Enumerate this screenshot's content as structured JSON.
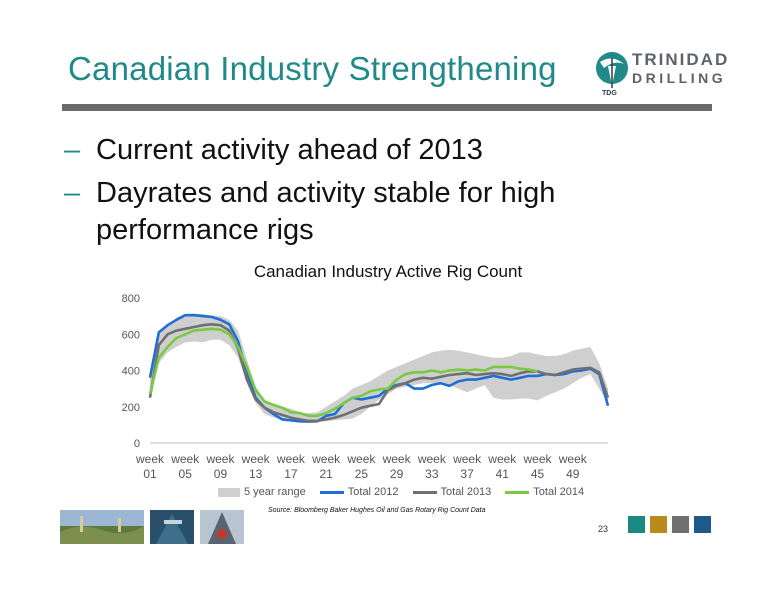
{
  "slide": {
    "title": "Canadian Industry Strengthening",
    "bullets": [
      "Current activity ahead of 2013",
      "Dayrates and activity stable for high performance rigs"
    ],
    "bullet_marker": "–",
    "source": "Source: Bloomberg Baker Hughes Oil and Gas Rotary Rig Count Data",
    "page_number": "23",
    "logo": {
      "word1": "TRINIDAD",
      "word2": "DRILLING",
      "tag": "TDG"
    },
    "colors": {
      "title": "#1f8a89",
      "rule": "#6b6b6b",
      "squares": [
        "#1a8a80",
        "#b98b1b",
        "#707070",
        "#1d5a8a"
      ]
    }
  },
  "chart_data": {
    "type": "line",
    "title": "Canadian Industry Active Rig Count",
    "ylim": [
      0,
      800
    ],
    "yticks": [
      0,
      200,
      400,
      600,
      800
    ],
    "xlim": [
      1,
      53
    ],
    "xticks": [
      1,
      5,
      9,
      13,
      17,
      21,
      25,
      29,
      33,
      37,
      41,
      45,
      49
    ],
    "xtick_labels": [
      [
        "week",
        "01"
      ],
      [
        "week",
        "05"
      ],
      [
        "week",
        "09"
      ],
      [
        "week",
        "13"
      ],
      [
        "week",
        "17"
      ],
      [
        "week",
        "21"
      ],
      [
        "week",
        "25"
      ],
      [
        "week",
        "29"
      ],
      [
        "week",
        "33"
      ],
      [
        "week",
        "37"
      ],
      [
        "week",
        "41"
      ],
      [
        "week",
        "45"
      ],
      [
        "week",
        "49"
      ]
    ],
    "grid": false,
    "legend_position": "bottom",
    "band": {
      "name": "5 year range",
      "color": "#cfcfcf",
      "x": [
        1,
        2,
        3,
        4,
        5,
        6,
        7,
        8,
        9,
        10,
        11,
        12,
        13,
        14,
        15,
        16,
        17,
        18,
        19,
        20,
        21,
        22,
        23,
        24,
        25,
        26,
        27,
        28,
        29,
        30,
        31,
        32,
        33,
        34,
        35,
        36,
        37,
        38,
        39,
        40,
        41,
        42,
        43,
        44,
        45,
        46,
        47,
        48,
        49,
        50,
        51,
        52,
        53
      ],
      "low": [
        260,
        440,
        500,
        530,
        555,
        560,
        555,
        570,
        570,
        540,
        470,
        330,
        220,
        160,
        140,
        130,
        125,
        120,
        118,
        118,
        120,
        125,
        130,
        135,
        160,
        200,
        240,
        270,
        300,
        310,
        320,
        330,
        330,
        330,
        320,
        300,
        280,
        300,
        320,
        250,
        240,
        240,
        245,
        245,
        235,
        260,
        280,
        300,
        330,
        360,
        380,
        300,
        220
      ],
      "high": [
        400,
        600,
        650,
        690,
        710,
        715,
        710,
        705,
        700,
        680,
        620,
        460,
        310,
        240,
        210,
        200,
        190,
        170,
        165,
        170,
        200,
        230,
        260,
        300,
        320,
        340,
        370,
        400,
        420,
        440,
        460,
        480,
        500,
        510,
        515,
        510,
        500,
        490,
        480,
        470,
        470,
        480,
        500,
        500,
        490,
        480,
        480,
        490,
        510,
        520,
        530,
        440,
        300
      ]
    },
    "series": [
      {
        "name": "Total 2012",
        "color": "#1f6fd6",
        "x": [
          1,
          2,
          3,
          4,
          5,
          6,
          7,
          8,
          9,
          10,
          11,
          12,
          13,
          14,
          15,
          16,
          17,
          18,
          19,
          20,
          21,
          22,
          23,
          24,
          25,
          26,
          27,
          28,
          29,
          30,
          31,
          32,
          33,
          34,
          35,
          36,
          37,
          38,
          39,
          40,
          41,
          42,
          43,
          44,
          45,
          46,
          47,
          48,
          49,
          50,
          51,
          52,
          53
        ],
        "values": [
          360,
          610,
          650,
          680,
          705,
          705,
          700,
          695,
          680,
          655,
          560,
          380,
          250,
          195,
          160,
          130,
          125,
          120,
          118,
          120,
          150,
          160,
          220,
          250,
          240,
          250,
          260,
          300,
          320,
          330,
          300,
          300,
          320,
          330,
          315,
          340,
          350,
          350,
          360,
          370,
          360,
          350,
          360,
          370,
          370,
          380,
          375,
          380,
          395,
          400,
          410,
          380,
          205
        ]
      },
      {
        "name": "Total 2013",
        "color": "#707070",
        "x": [
          1,
          2,
          3,
          4,
          5,
          6,
          7,
          8,
          9,
          10,
          11,
          12,
          13,
          14,
          15,
          16,
          17,
          18,
          19,
          20,
          21,
          22,
          23,
          24,
          25,
          26,
          27,
          28,
          29,
          30,
          31,
          32,
          33,
          34,
          35,
          36,
          37,
          38,
          39,
          40,
          41,
          42,
          43,
          44,
          45,
          46,
          47,
          48,
          49,
          50,
          51,
          52,
          53
        ],
        "values": [
          250,
          540,
          600,
          620,
          630,
          640,
          650,
          655,
          650,
          620,
          520,
          350,
          240,
          195,
          170,
          155,
          140,
          130,
          122,
          122,
          130,
          140,
          155,
          175,
          195,
          205,
          215,
          290,
          315,
          330,
          350,
          360,
          355,
          365,
          375,
          380,
          385,
          375,
          380,
          385,
          380,
          370,
          385,
          395,
          395,
          380,
          375,
          390,
          405,
          410,
          415,
          390,
          250
        ]
      },
      {
        "name": "Total 2014",
        "color": "#7ac943",
        "x": [
          1,
          2,
          3,
          4,
          5,
          6,
          7,
          8,
          9,
          10,
          11,
          12,
          13,
          14,
          15,
          16,
          17,
          18,
          19,
          20,
          21,
          22,
          23,
          24,
          25,
          26,
          27,
          28,
          29,
          30,
          31,
          32,
          33,
          34,
          35,
          36,
          37,
          38,
          39,
          40,
          41,
          42,
          43,
          44,
          45
        ],
        "values": [
          270,
          470,
          530,
          580,
          600,
          620,
          625,
          630,
          625,
          600,
          530,
          420,
          290,
          230,
          210,
          195,
          170,
          165,
          150,
          150,
          165,
          190,
          220,
          250,
          260,
          285,
          295,
          300,
          350,
          380,
          390,
          390,
          400,
          390,
          400,
          405,
          400,
          405,
          400,
          420,
          420,
          420,
          410,
          405,
          395
        ]
      }
    ]
  }
}
